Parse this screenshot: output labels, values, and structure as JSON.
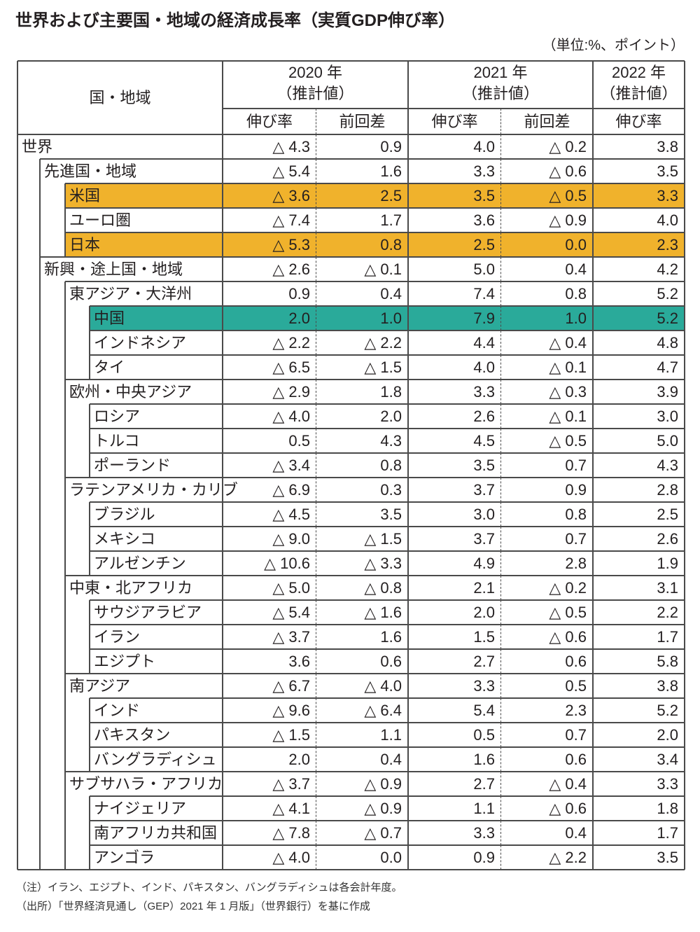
{
  "title": "世界および主要国・地域の経済成長率（実質GDP伸び率）",
  "unit": "（単位:%、ポイント）",
  "table": {
    "header": {
      "region": "国・地域",
      "years": [
        {
          "label": "2020 年",
          "sub": "（推計値）",
          "cols": [
            "伸び率",
            "前回差"
          ]
        },
        {
          "label": "2021 年",
          "sub": "（推計値）",
          "cols": [
            "伸び率",
            "前回差"
          ]
        },
        {
          "label": "2022 年",
          "sub": "（推計値）",
          "cols": [
            "伸び率"
          ]
        }
      ]
    },
    "rows": [
      {
        "label": "世界",
        "level": 0,
        "cells": [
          "△ 4.3",
          "0.9",
          "4.0",
          "△ 0.2",
          "3.8"
        ]
      },
      {
        "label": "先進国・地域",
        "level": 1,
        "cells": [
          "△ 5.4",
          "1.6",
          "3.3",
          "△ 0.6",
          "3.5"
        ]
      },
      {
        "label": "米国",
        "level": 2,
        "highlight": "#f0b22c",
        "cells": [
          "△ 3.6",
          "2.5",
          "3.5",
          "△ 0.5",
          "3.3"
        ]
      },
      {
        "label": "ユーロ圏",
        "level": 2,
        "cells": [
          "△ 7.4",
          "1.7",
          "3.6",
          "△ 0.9",
          "4.0"
        ]
      },
      {
        "label": "日本",
        "level": 2,
        "highlight": "#f0b22c",
        "cells": [
          "△ 5.3",
          "0.8",
          "2.5",
          "0.0",
          "2.3"
        ]
      },
      {
        "label": "新興・途上国・地域",
        "level": 1,
        "cells": [
          "△ 2.6",
          "△ 0.1",
          "5.0",
          "0.4",
          "4.2"
        ]
      },
      {
        "label": "東アジア・大洋州",
        "level": 2,
        "cells": [
          "0.9",
          "0.4",
          "7.4",
          "0.8",
          "5.2"
        ]
      },
      {
        "label": "中国",
        "level": 3,
        "highlight": "#2aaa9a",
        "cells": [
          "2.0",
          "1.0",
          "7.9",
          "1.0",
          "5.2"
        ]
      },
      {
        "label": "インドネシア",
        "level": 3,
        "cells": [
          "△ 2.2",
          "△ 2.2",
          "4.4",
          "△ 0.4",
          "4.8"
        ]
      },
      {
        "label": "タイ",
        "level": 3,
        "cells": [
          "△ 6.5",
          "△ 1.5",
          "4.0",
          "△ 0.1",
          "4.7"
        ]
      },
      {
        "label": "欧州・中央アジア",
        "level": 2,
        "cells": [
          "△ 2.9",
          "1.8",
          "3.3",
          "△ 0.3",
          "3.9"
        ]
      },
      {
        "label": "ロシア",
        "level": 3,
        "cells": [
          "△ 4.0",
          "2.0",
          "2.6",
          "△ 0.1",
          "3.0"
        ]
      },
      {
        "label": "トルコ",
        "level": 3,
        "cells": [
          "0.5",
          "4.3",
          "4.5",
          "△ 0.5",
          "5.0"
        ]
      },
      {
        "label": "ポーランド",
        "level": 3,
        "cells": [
          "△ 3.4",
          "0.8",
          "3.5",
          "0.7",
          "4.3"
        ]
      },
      {
        "label": "ラテンアメリカ・カリブ",
        "level": 2,
        "cells": [
          "△ 6.9",
          "0.3",
          "3.7",
          "0.9",
          "2.8"
        ]
      },
      {
        "label": "ブラジル",
        "level": 3,
        "cells": [
          "△ 4.5",
          "3.5",
          "3.0",
          "0.8",
          "2.5"
        ]
      },
      {
        "label": "メキシコ",
        "level": 3,
        "cells": [
          "△ 9.0",
          "△ 1.5",
          "3.7",
          "0.7",
          "2.6"
        ]
      },
      {
        "label": "アルゼンチン",
        "level": 3,
        "cells": [
          "△ 10.6",
          "△ 3.3",
          "4.9",
          "2.8",
          "1.9"
        ]
      },
      {
        "label": "中東・北アフリカ",
        "level": 2,
        "cells": [
          "△ 5.0",
          "△ 0.8",
          "2.1",
          "△ 0.2",
          "3.1"
        ]
      },
      {
        "label": "サウジアラビア",
        "level": 3,
        "cells": [
          "△ 5.4",
          "△ 1.6",
          "2.0",
          "△ 0.5",
          "2.2"
        ]
      },
      {
        "label": "イラン",
        "level": 3,
        "cells": [
          "△ 3.7",
          "1.6",
          "1.5",
          "△ 0.6",
          "1.7"
        ]
      },
      {
        "label": "エジプト",
        "level": 3,
        "cells": [
          "3.6",
          "0.6",
          "2.7",
          "0.6",
          "5.8"
        ]
      },
      {
        "label": "南アジア",
        "level": 2,
        "cells": [
          "△ 6.7",
          "△ 4.0",
          "3.3",
          "0.5",
          "3.8"
        ]
      },
      {
        "label": "インド",
        "level": 3,
        "cells": [
          "△ 9.6",
          "△ 6.4",
          "5.4",
          "2.3",
          "5.2"
        ]
      },
      {
        "label": "パキスタン",
        "level": 3,
        "cells": [
          "△ 1.5",
          "1.1",
          "0.5",
          "0.7",
          "2.0"
        ]
      },
      {
        "label": "バングラディシュ",
        "level": 3,
        "cells": [
          "2.0",
          "0.4",
          "1.6",
          "0.6",
          "3.4"
        ]
      },
      {
        "label": "サブサハラ・アフリカ",
        "level": 2,
        "cells": [
          "△ 3.7",
          "△ 0.9",
          "2.7",
          "△ 0.4",
          "3.3"
        ]
      },
      {
        "label": "ナイジェリア",
        "level": 3,
        "cells": [
          "△ 4.1",
          "△ 0.9",
          "1.1",
          "△ 0.6",
          "1.8"
        ]
      },
      {
        "label": "南アフリカ共和国",
        "level": 3,
        "cells": [
          "△ 7.8",
          "△ 0.7",
          "3.3",
          "0.4",
          "1.7"
        ]
      },
      {
        "label": "アンゴラ",
        "level": 3,
        "cells": [
          "△ 4.0",
          "0.0",
          "0.9",
          "△ 2.2",
          "3.5"
        ]
      }
    ]
  },
  "notes": [
    "（注）イラン、エジプト、インド、パキスタン、バングラディシュは各会計年度。",
    "（出所）「世界経済見通し（GEP）2021 年 1 月版」（世界銀行）を基に作成"
  ]
}
